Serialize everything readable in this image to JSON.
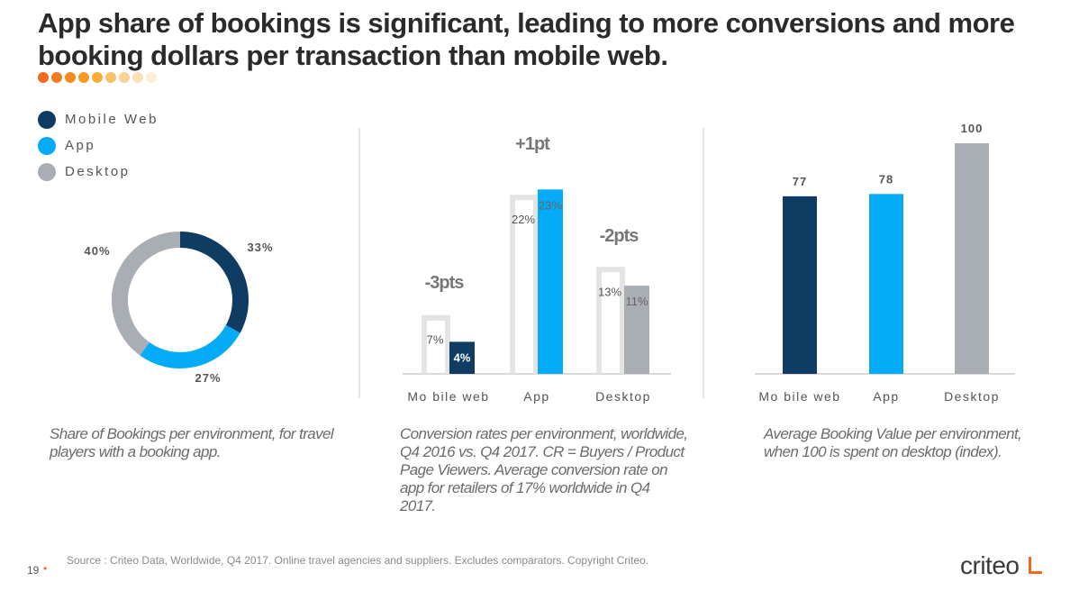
{
  "title": "App share of bookings is significant, leading to more conversions and more booking dollars per transaction than mobile web.",
  "dot_colors": [
    "#f26a21",
    "#f47a21",
    "#f58a22",
    "#f79a23",
    "#f9ae3c",
    "#f9c16a",
    "#fbd294",
    "#fce1b8",
    "#fdeed8"
  ],
  "legend": [
    {
      "label": "Mobile Web",
      "color": "#0e3c62"
    },
    {
      "label": "App",
      "color": "#04abf7"
    },
    {
      "label": "Desktop",
      "color": "#a9adb4"
    }
  ],
  "chart_data": [
    {
      "type": "pie",
      "categories": [
        "Mobile Web",
        "App",
        "Desktop"
      ],
      "values": [
        33,
        27,
        40
      ],
      "labels": [
        "33%",
        "27%",
        "40%"
      ],
      "colors": [
        "#0e3c62",
        "#04abf7",
        "#a9adb4"
      ],
      "caption": "Share of Bookings per environment, for travel players with a booking app."
    },
    {
      "type": "bar",
      "categories": [
        "Mo bile web",
        "App",
        "Desktop"
      ],
      "series": [
        {
          "name": "Q4 2016",
          "values": [
            7,
            22,
            13
          ],
          "labels": [
            "7%",
            "22%",
            "13%"
          ]
        },
        {
          "name": "Q4 2017",
          "values": [
            4,
            23,
            11
          ],
          "labels": [
            "4%",
            "23%",
            "11%"
          ]
        }
      ],
      "annotations": [
        "-3pts",
        "+1pt",
        "-2pts"
      ],
      "colors": [
        "#0e3c62",
        "#04abf7",
        "#a9adb4"
      ],
      "ylim": [
        0,
        25
      ],
      "caption": "Conversion rates per environment, worldwide, Q4 2016 vs. Q4 2017. CR = Buyers / Product Page Viewers. Average conversion rate on app for retailers of 17% worldwide in Q4 2017."
    },
    {
      "type": "bar",
      "categories": [
        "Mo bile web",
        "App",
        "Desktop"
      ],
      "values": [
        77,
        78,
        100
      ],
      "labels": [
        "77",
        "78",
        "100"
      ],
      "colors": [
        "#0e3c62",
        "#04abf7",
        "#a9adb4"
      ],
      "ylim": [
        0,
        100
      ],
      "caption": "Average Booking Value per environment, when 100 is spent on desktop (index)."
    }
  ],
  "footer": {
    "page": "19",
    "source": "Source : Criteo Data, Worldwide, Q4 2017. Online travel agencies and suppliers. Excludes comparators. Copyright Criteo.",
    "logo": "criteo"
  }
}
